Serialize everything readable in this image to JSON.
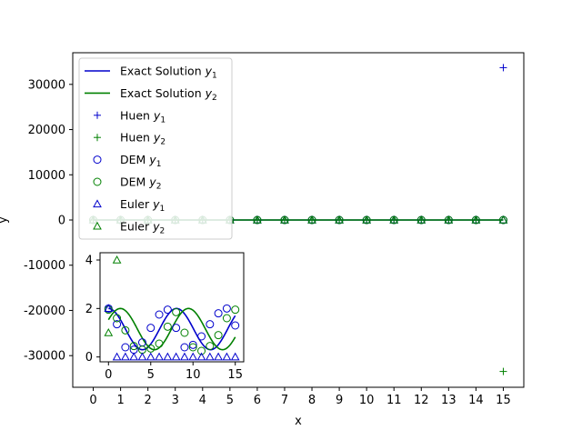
{
  "chart_data": [
    {
      "id": "main",
      "type": "line",
      "xlabel": "x",
      "ylabel": "y",
      "xlim": [
        -0.75,
        15.75
      ],
      "ylim": [
        -37000,
        37000
      ],
      "x_ticks": [
        0,
        1,
        2,
        3,
        4,
        5,
        6,
        7,
        8,
        9,
        10,
        11,
        12,
        13,
        14,
        15
      ],
      "y_ticks": [
        -30000,
        -20000,
        -10000,
        0,
        10000,
        20000,
        30000
      ],
      "legend": {
        "placement": "upper-left",
        "entries": [
          {
            "key": "exact_y1",
            "label": "Exact Solution",
            "sub": "1",
            "marker": "line",
            "color": "#0000cc"
          },
          {
            "key": "exact_y2",
            "label": "Exact Solution",
            "sub": "2",
            "marker": "line",
            "color": "#008000"
          },
          {
            "key": "huen_y1",
            "label": "Huen",
            "sub": "1",
            "marker": "plus",
            "color": "#0000cc"
          },
          {
            "key": "huen_y2",
            "label": "Huen",
            "sub": "2",
            "marker": "plus",
            "color": "#008000"
          },
          {
            "key": "dem_y1",
            "label": "DEM",
            "sub": "1",
            "marker": "circle",
            "color": "#0000cc"
          },
          {
            "key": "dem_y2",
            "label": "DEM",
            "sub": "2",
            "marker": "circle",
            "color": "#008000"
          },
          {
            "key": "euler_y1",
            "label": "Euler",
            "sub": "1",
            "marker": "triangle",
            "color": "#0000cc"
          },
          {
            "key": "euler_y2",
            "label": "Euler",
            "sub": "2",
            "marker": "triangle",
            "color": "#008000"
          }
        ]
      },
      "series": [
        {
          "key": "exact_y1",
          "style": "line",
          "color": "#0000cc",
          "x": [
            0,
            15
          ],
          "y": [
            0,
            0
          ]
        },
        {
          "key": "exact_y2",
          "style": "line",
          "color": "#008000",
          "x": [
            0,
            15
          ],
          "y": [
            0,
            0
          ]
        },
        {
          "key": "huen_y1",
          "style": "plus",
          "color": "#0000cc",
          "x": [
            0,
            1,
            2,
            3,
            4,
            5,
            6,
            7,
            8,
            9,
            10,
            11,
            12,
            13,
            14,
            15
          ],
          "y": [
            0,
            0,
            0,
            0,
            0,
            0,
            0,
            0,
            0,
            0,
            0,
            0,
            0,
            0,
            0,
            33700
          ]
        },
        {
          "key": "huen_y2",
          "style": "plus",
          "color": "#008000",
          "x": [
            0,
            1,
            2,
            3,
            4,
            5,
            6,
            7,
            8,
            9,
            10,
            11,
            12,
            13,
            14,
            15
          ],
          "y": [
            0,
            0,
            0,
            0,
            0,
            0,
            0,
            0,
            0,
            0,
            0,
            0,
            0,
            0,
            0,
            -33500
          ]
        },
        {
          "key": "dem_y1",
          "style": "circle",
          "color": "#0000cc",
          "x": [
            0,
            1,
            2,
            3,
            4,
            5,
            6,
            7,
            8,
            9,
            10,
            11,
            12,
            13,
            14,
            15
          ],
          "y": [
            0,
            0,
            0,
            0,
            0,
            0,
            0,
            0,
            0,
            0,
            0,
            0,
            0,
            0,
            0,
            0
          ]
        },
        {
          "key": "dem_y2",
          "style": "circle",
          "color": "#008000",
          "x": [
            0,
            1,
            2,
            3,
            4,
            5,
            6,
            7,
            8,
            9,
            10,
            11,
            12,
            13,
            14,
            15
          ],
          "y": [
            0,
            0,
            0,
            0,
            0,
            0,
            0,
            0,
            0,
            0,
            0,
            0,
            0,
            0,
            0,
            0
          ]
        },
        {
          "key": "euler_y1",
          "style": "triangle",
          "color": "#0000cc",
          "x": [
            0,
            1,
            2,
            3,
            4,
            5,
            6,
            7,
            8,
            9,
            10,
            11,
            12,
            13,
            14,
            15
          ],
          "y": [
            0,
            0,
            0,
            0,
            0,
            0,
            0,
            0,
            0,
            0,
            0,
            0,
            0,
            0,
            0,
            0
          ]
        },
        {
          "key": "euler_y2",
          "style": "triangle",
          "color": "#008000",
          "x": [
            0,
            1,
            2,
            3,
            4,
            5,
            6,
            7,
            8,
            9,
            10,
            11,
            12,
            13,
            14,
            15
          ],
          "y": [
            0,
            0,
            0,
            0,
            0,
            0,
            0,
            0,
            0,
            0,
            0,
            0,
            0,
            0,
            0,
            0
          ]
        }
      ]
    },
    {
      "id": "inset",
      "type": "line",
      "xlim": [
        -1,
        16
      ],
      "ylim": [
        -0.2,
        4.3
      ],
      "x_ticks": [
        0,
        5,
        10,
        15
      ],
      "y_ticks": [
        0,
        2,
        4
      ],
      "series": [
        {
          "key": "exact_y1",
          "style": "line",
          "color": "#0000cc",
          "generator": "y1"
        },
        {
          "key": "exact_y2",
          "style": "line",
          "color": "#008000",
          "generator": "y2"
        },
        {
          "key": "dem_y1",
          "style": "circle",
          "color": "#0000cc",
          "x": [
            0,
            1,
            2,
            3,
            4,
            5,
            6,
            7,
            8,
            9,
            10,
            11,
            12,
            13,
            14,
            15
          ],
          "y": [
            2.0,
            1.35,
            0.4,
            0.3,
            0.6,
            1.2,
            1.75,
            1.95,
            1.2,
            0.4,
            0.5,
            0.85,
            1.35,
            1.8,
            2.0,
            1.3
          ]
        },
        {
          "key": "dem_y2",
          "style": "circle",
          "color": "#008000",
          "x": [
            0,
            1,
            2,
            3,
            4,
            5,
            6,
            7,
            8,
            9,
            10,
            11,
            12,
            13,
            14,
            15
          ],
          "y": [
            1.95,
            1.6,
            1.1,
            0.45,
            0.3,
            0.35,
            0.55,
            1.25,
            1.85,
            1.0,
            0.4,
            0.25,
            0.45,
            0.9,
            1.6,
            1.95
          ]
        },
        {
          "key": "euler_y1",
          "style": "triangle",
          "color": "#0000cc",
          "x": [
            0,
            1,
            2,
            3,
            4,
            5,
            6,
            7,
            8,
            9,
            10,
            11,
            12,
            13,
            14,
            15
          ],
          "y": [
            2.0,
            0,
            0,
            0,
            0,
            0,
            0,
            0,
            0,
            0,
            0,
            0,
            0,
            0,
            0,
            0
          ]
        },
        {
          "key": "euler_y2",
          "style": "triangle",
          "color": "#008000",
          "x": [
            0,
            1
          ],
          "y": [
            1.0,
            4.0
          ]
        }
      ]
    }
  ]
}
